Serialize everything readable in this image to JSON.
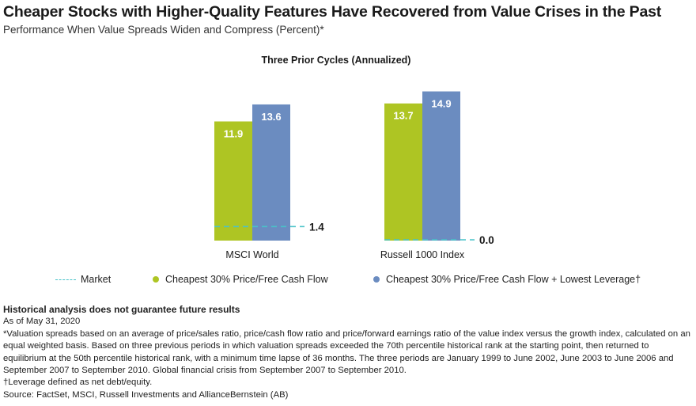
{
  "header": {
    "title": "Cheaper Stocks with Higher-Quality Features Have Recovered from Value Crises in the Past",
    "subtitle": "Performance When Value Spreads Widen and Compress (Percent)*"
  },
  "chart_data": {
    "type": "bar",
    "title": "Three Prior Cycles (Annualized)",
    "categories": [
      "MSCI World",
      "Russell 1000 Index"
    ],
    "series": [
      {
        "name": "Cheapest 30% Price/Free Cash Flow",
        "values": [
          11.9,
          13.7
        ],
        "color": "#aec523"
      },
      {
        "name": "Cheapest 30% Price/Free Cash Flow + Lowest Leverage†",
        "values": [
          13.6,
          14.9
        ],
        "color": "#6b8cc0"
      }
    ],
    "market": {
      "name": "Market",
      "values": [
        1.4,
        0.0
      ],
      "labels": [
        "1.4",
        "0.0"
      ],
      "color": "#49c3c9"
    },
    "value_labels": [
      [
        "11.9",
        "13.7"
      ],
      [
        "13.6",
        "14.9"
      ]
    ],
    "ylim": [
      0,
      16
    ],
    "grid": false,
    "legend_position": "bottom"
  },
  "notes": {
    "disclaimer": "Historical analysis does not guarantee future results",
    "as_of": "As of May 31, 2020",
    "footnote_star": "*Valuation spreads based on an average of price/sales ratio, price/cash flow ratio and price/forward earnings ratio of the value index versus the growth index, calculated on an equal weighted basis. Based on three previous periods in which valuation spreads exceeded the 70th percentile historical rank at the starting point, then returned to equilibrium at the 50th percentile historical rank, with a minimum time lapse of 36 months. The three periods are January 1999 to June 2002, June 2003 to June 2006 and September 2007 to September 2010. Global financial crisis from September 2007 to September 2010.",
    "footnote_dagger": "†Leverage defined as net debt/equity.",
    "source": "Source: FactSet, MSCI, Russell Investments and AllianceBernstein (AB)"
  }
}
